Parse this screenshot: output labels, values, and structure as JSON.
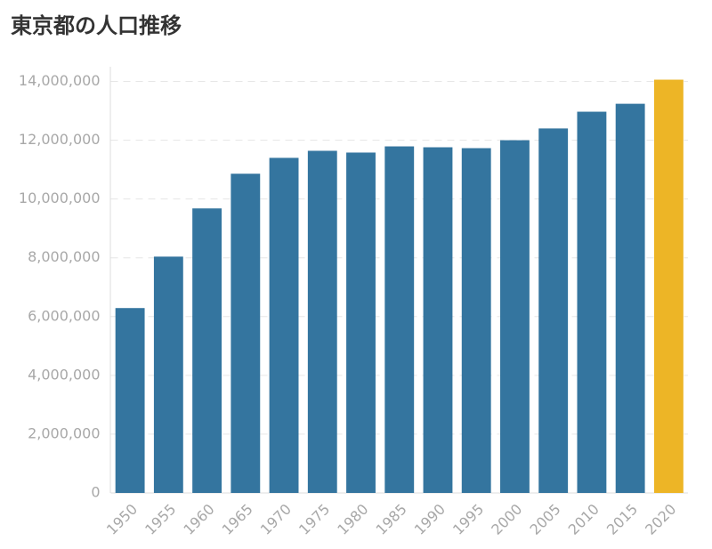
{
  "chart_data": {
    "type": "bar",
    "title": "東京都の人口推移",
    "categories": [
      "1950",
      "1955",
      "1960",
      "1965",
      "1970",
      "1975",
      "1980",
      "1985",
      "1990",
      "1995",
      "2000",
      "2005",
      "2010",
      "2015",
      "2020"
    ],
    "values": [
      6290000,
      8040000,
      9680000,
      10860000,
      11400000,
      11640000,
      11580000,
      11790000,
      11760000,
      11730000,
      12000000,
      12400000,
      12970000,
      13240000,
      14060000
    ],
    "colors": [
      "#34759f",
      "#34759f",
      "#34759f",
      "#34759f",
      "#34759f",
      "#34759f",
      "#34759f",
      "#34759f",
      "#34759f",
      "#34759f",
      "#34759f",
      "#34759f",
      "#34759f",
      "#34759f",
      "#edb526"
    ],
    "ylim": [
      0,
      14500000
    ],
    "yticks": [
      0,
      {
        "value": 2000000,
        "label": "2,000,000"
      },
      {
        "value": 4000000,
        "label": "4,000,000"
      },
      {
        "value": 6000000,
        "label": "6,000,000"
      },
      {
        "value": 8000000,
        "label": "8,000,000"
      },
      {
        "value": 10000000,
        "label": "10,000,000"
      },
      {
        "value": 12000000,
        "label": "12,000,000"
      },
      {
        "value": 14000000,
        "label": "14,000,000"
      }
    ],
    "grid": true
  }
}
